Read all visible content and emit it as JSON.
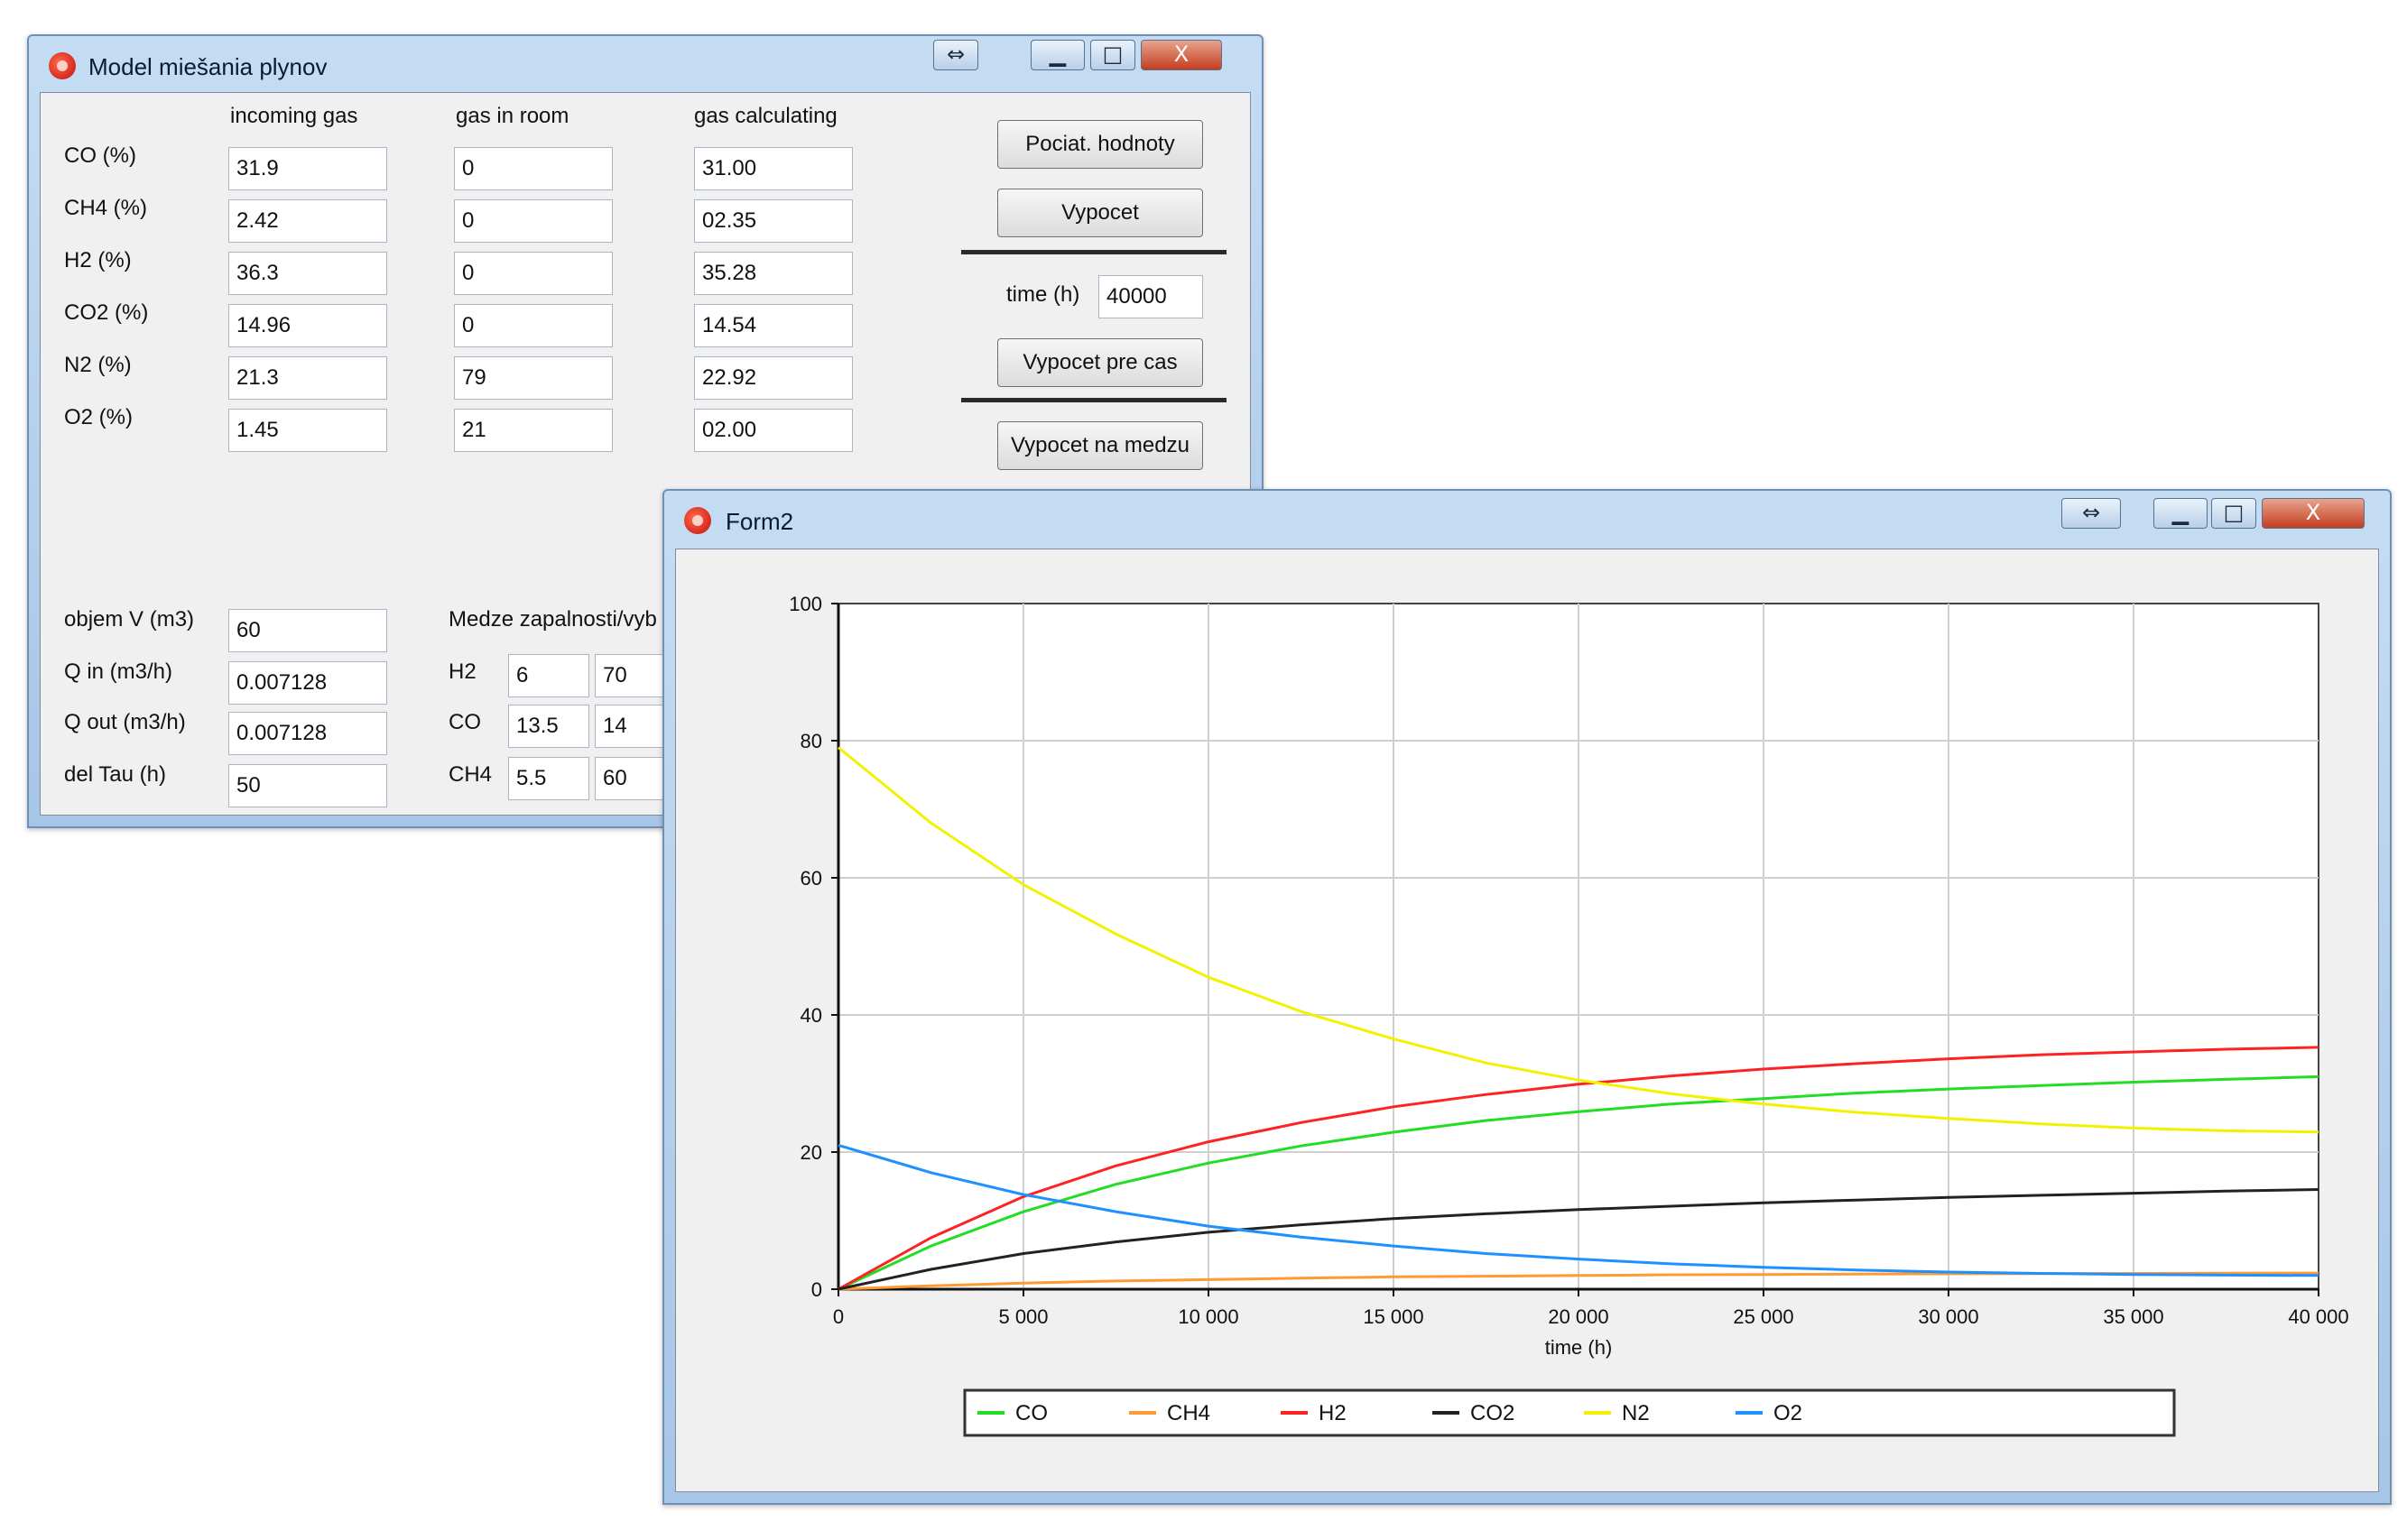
{
  "main_window": {
    "title": "Model miešania plynov",
    "columns": [
      "incoming gas",
      "gas in room",
      "gas calculating"
    ],
    "rows": [
      {
        "label": "CO (%)",
        "incoming": "31.9",
        "room": "0",
        "calc": "31.00"
      },
      {
        "label": "CH4 (%)",
        "incoming": "2.42",
        "room": "0",
        "calc": "02.35"
      },
      {
        "label": "H2 (%)",
        "incoming": "36.3",
        "room": "0",
        "calc": "35.28"
      },
      {
        "label": "CO2 (%)",
        "incoming": "14.96",
        "room": "0",
        "calc": "14.54"
      },
      {
        "label": "N2 (%)",
        "incoming": "21.3",
        "room": "79",
        "calc": "22.92"
      },
      {
        "label": "O2 (%)",
        "incoming": "1.45",
        "room": "21",
        "calc": "02.00"
      }
    ],
    "buttons": {
      "initial_values": "Pociat. hodnoty",
      "compute": "Vypocet",
      "compute_for_time": "Vypocet pre cas",
      "compute_limit": "Vypocet na medzu"
    },
    "time_label": "time (h)",
    "time_value": "40000",
    "params": [
      {
        "label": "objem V (m3)",
        "value": "60"
      },
      {
        "label": "Q in (m3/h)",
        "value": "0.007128"
      },
      {
        "label": "Q out (m3/h)",
        "value": "0.007128"
      },
      {
        "label": "del Tau (h)",
        "value": "50"
      }
    ],
    "limits_title": "Medze zapalnosti/vyb",
    "limits": [
      {
        "gas": "H2",
        "low": "6",
        "high": "70"
      },
      {
        "gas": "CO",
        "low": "13.5",
        "high": "14"
      },
      {
        "gas": "CH4",
        "low": "5.5",
        "high": "60"
      }
    ]
  },
  "form2": {
    "title": "Form2"
  },
  "window_controls": {
    "resize": "⇔",
    "minimize": "▁",
    "maximize": "□",
    "close": "X"
  },
  "chart_data": {
    "type": "line",
    "xlabel": "time (h)",
    "ylabel": "",
    "xlim": [
      0,
      40000
    ],
    "ylim": [
      0,
      100
    ],
    "x_ticks": [
      0,
      5000,
      10000,
      15000,
      20000,
      25000,
      30000,
      35000,
      40000
    ],
    "x_tick_labels": [
      "0",
      "5 000",
      "10 000",
      "15 000",
      "20 000",
      "25 000",
      "30 000",
      "35 000",
      "40 000"
    ],
    "y_ticks": [
      0,
      20,
      40,
      60,
      80,
      100
    ],
    "y_tick_labels": [
      "0",
      "20",
      "40",
      "60",
      "80",
      "100"
    ],
    "grid": true,
    "legend_position": "bottom",
    "x": [
      0,
      2500,
      5000,
      7500,
      10000,
      12500,
      15000,
      17500,
      20000,
      22500,
      25000,
      27500,
      30000,
      32500,
      35000,
      37500,
      40000
    ],
    "series": [
      {
        "name": "CO",
        "color": "#22dd22",
        "values": [
          0,
          6.3,
          11.3,
          15.3,
          18.4,
          20.9,
          22.9,
          24.6,
          25.9,
          27.0,
          27.8,
          28.6,
          29.2,
          29.7,
          30.2,
          30.6,
          31.0
        ]
      },
      {
        "name": "CH4",
        "color": "#ff9933",
        "values": [
          0,
          0.5,
          0.9,
          1.2,
          1.4,
          1.6,
          1.8,
          1.9,
          2.0,
          2.1,
          2.15,
          2.2,
          2.25,
          2.28,
          2.3,
          2.33,
          2.35
        ]
      },
      {
        "name": "H2",
        "color": "#ff2222",
        "values": [
          0,
          7.5,
          13.5,
          18.0,
          21.5,
          24.3,
          26.6,
          28.4,
          29.9,
          31.1,
          32.1,
          32.9,
          33.6,
          34.2,
          34.6,
          35.0,
          35.28
        ]
      },
      {
        "name": "CO2",
        "color": "#222222",
        "values": [
          0,
          2.9,
          5.2,
          6.9,
          8.3,
          9.4,
          10.3,
          11.0,
          11.6,
          12.1,
          12.6,
          13.0,
          13.4,
          13.7,
          14.0,
          14.3,
          14.54
        ]
      },
      {
        "name": "N2",
        "color": "#f2f200",
        "values": [
          79,
          68.0,
          59.0,
          51.8,
          45.5,
          40.5,
          36.5,
          33.0,
          30.5,
          28.5,
          27.0,
          25.8,
          24.9,
          24.1,
          23.5,
          23.1,
          22.92
        ]
      },
      {
        "name": "O2",
        "color": "#1e90ff",
        "values": [
          21,
          17.0,
          13.8,
          11.3,
          9.2,
          7.6,
          6.3,
          5.2,
          4.4,
          3.7,
          3.2,
          2.8,
          2.5,
          2.3,
          2.15,
          2.05,
          2.0
        ]
      }
    ]
  }
}
